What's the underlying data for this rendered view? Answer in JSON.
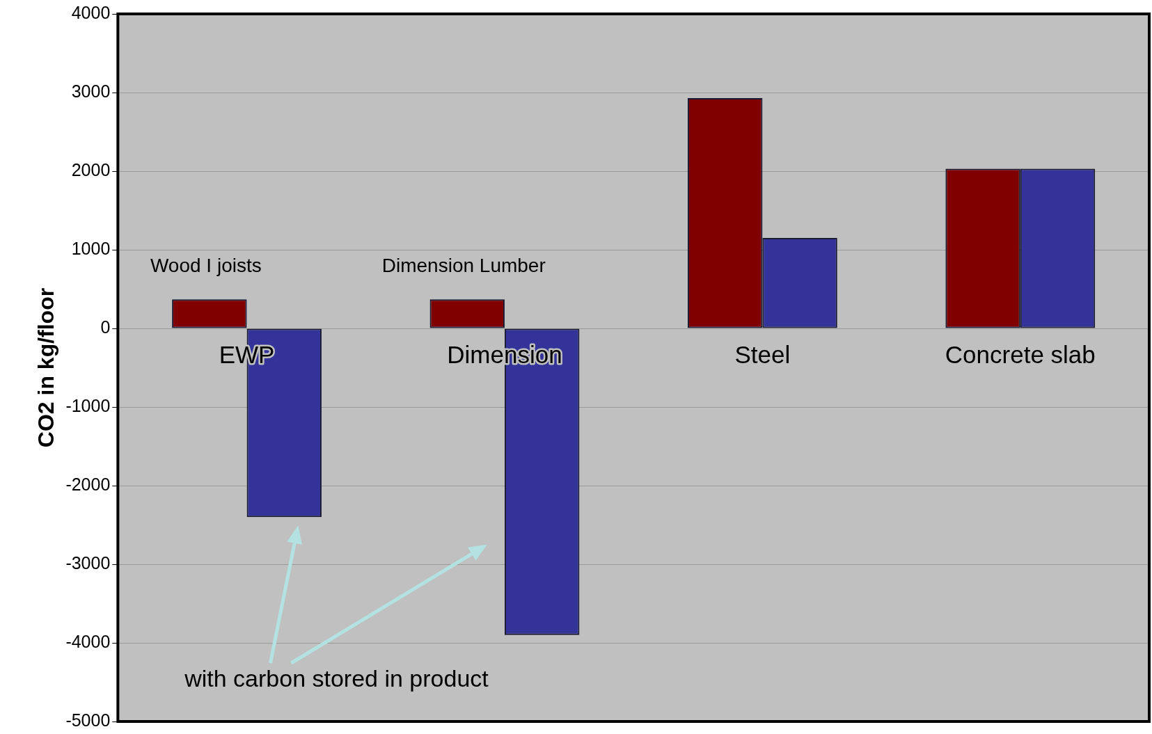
{
  "chart_data": {
    "type": "bar",
    "ylabel": "CO2 in kg/floor",
    "categories": [
      "EWP",
      "Dimension",
      "Steel",
      "Concrete slab"
    ],
    "series": [
      {
        "color": "#800000",
        "values": [
          370,
          370,
          2930,
          2030
        ]
      },
      {
        "color": "#333399",
        "values": [
          -2400,
          -3900,
          1150,
          2030
        ]
      }
    ],
    "ylim": [
      -5000,
      4000
    ],
    "yticks": [
      -5000,
      -4000,
      -3000,
      -2000,
      -1000,
      0,
      1000,
      2000,
      3000,
      4000
    ],
    "grid": "y",
    "legend": false,
    "annotations": [
      "Wood I joists",
      "Dimension Lumber",
      "with carbon stored in product"
    ]
  }
}
